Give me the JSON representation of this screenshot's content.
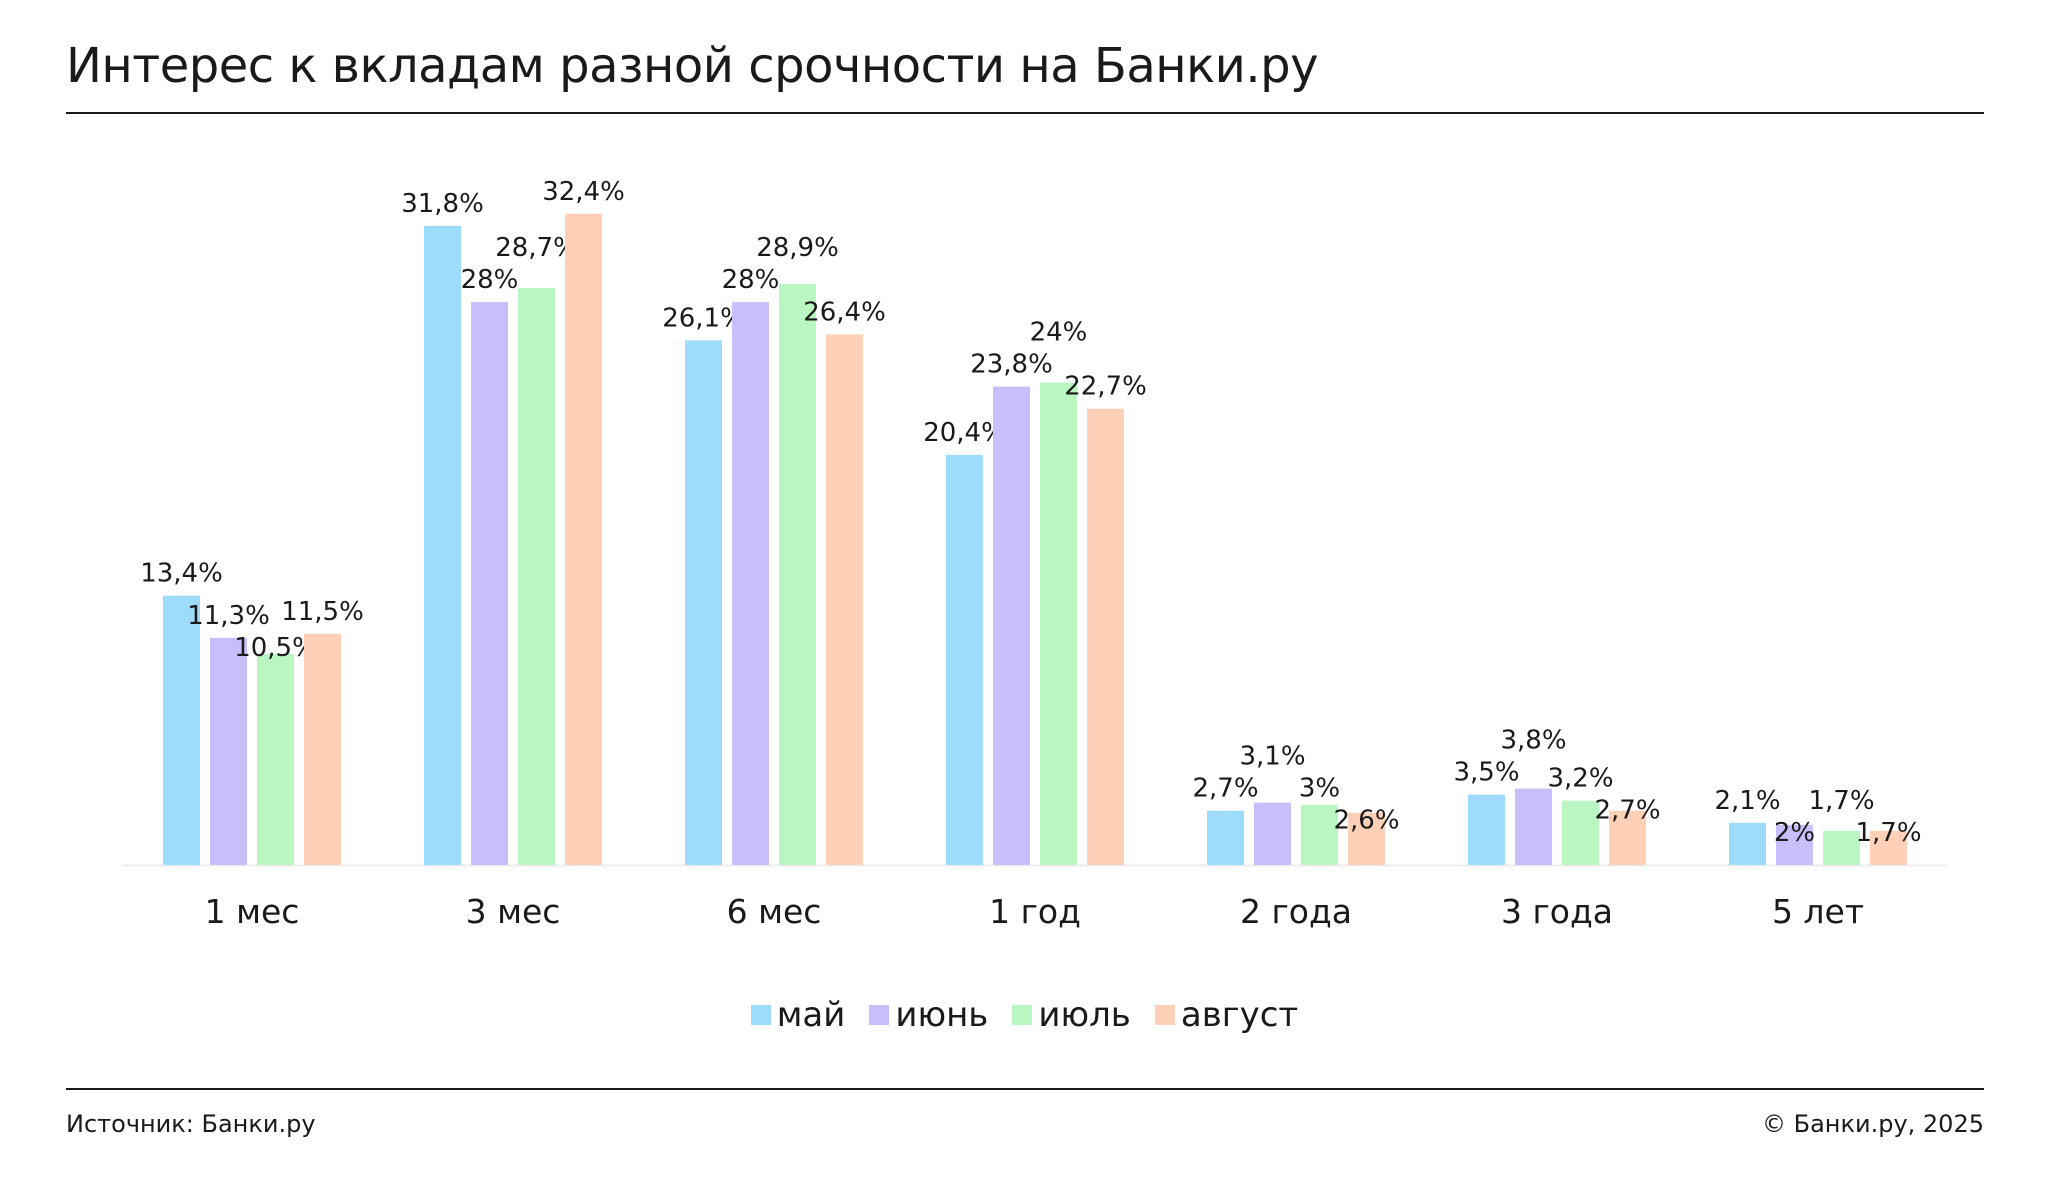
{
  "title": "Интерес к вкладам разной срочности на Банки.ру",
  "footer": {
    "source": "Источник: Банки.ру",
    "copyright": "© Банки.ру, 2025"
  },
  "chart_data": {
    "type": "bar",
    "title": "Интерес к вкладам разной срочности на Банки.ру",
    "xlabel": "",
    "ylabel": "",
    "ylim": [
      0,
      35
    ],
    "grid": false,
    "legend_position": "bottom",
    "categories": [
      "1 мес",
      "3 мес",
      "6 мес",
      "1 год",
      "2 года",
      "3 года",
      "5 лет"
    ],
    "series": [
      {
        "name": "май",
        "color": "#9ddcfc",
        "values": [
          13.4,
          31.8,
          26.1,
          20.4,
          2.7,
          3.5,
          2.1
        ],
        "labels": [
          "13,4%",
          "31,8%",
          "26,1%",
          "20,4%",
          "2,7%",
          "3,5%",
          "2,1%"
        ]
      },
      {
        "name": "июнь",
        "color": "#c9befb",
        "values": [
          11.3,
          28,
          28,
          23.8,
          3.1,
          3.8,
          2
        ],
        "labels": [
          "11,3%",
          "28%",
          "28%",
          "23,8%",
          "3,1%",
          "3,8%",
          "2%"
        ]
      },
      {
        "name": "июль",
        "color": "#b9f6c2",
        "values": [
          10.5,
          28.7,
          28.9,
          24,
          3,
          3.2,
          1.7
        ],
        "labels": [
          "10,5%",
          "28,7%",
          "28,9%",
          "24%",
          "3%",
          "3,2%",
          "1,7%"
        ]
      },
      {
        "name": "август",
        "color": "#ffd0b8",
        "values": [
          11.5,
          32.4,
          26.4,
          22.7,
          2.6,
          2.7,
          1.7
        ],
        "labels": [
          "11,5%",
          "32,4%",
          "26,4%",
          "22,7%",
          "2,6%",
          "2,7%",
          "1,7%"
        ]
      }
    ]
  }
}
